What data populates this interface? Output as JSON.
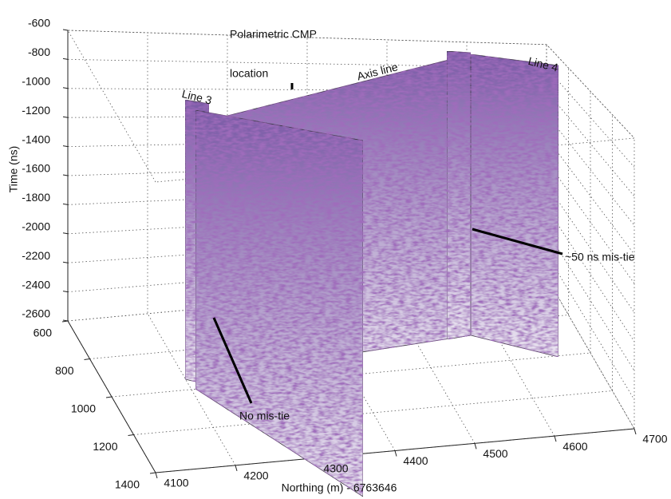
{
  "chart_data": {
    "type": "seismic-3d",
    "zlabel": "Time (ns)",
    "xlabel": "Northing (m) - 6763646",
    "xlim": [
      4100,
      4700
    ],
    "xticks": [
      4100,
      4200,
      4300,
      4400,
      4500,
      4600,
      4700
    ],
    "ylim": [
      600,
      1400
    ],
    "yticks": [
      600,
      800,
      1000,
      1200,
      1400
    ],
    "zlim": [
      -2600,
      -600
    ],
    "zticks": [
      -600,
      -800,
      -1000,
      -1200,
      -1400,
      -1600,
      -1800,
      -2000,
      -2200,
      -2400,
      -2600
    ],
    "grid": true,
    "annotations": {
      "cmp": [
        "Polarimetric CMP",
        "location"
      ],
      "axis_line": "Axis line",
      "line3": "Line 3",
      "line4": "Line 4",
      "mistie": "~50 ns mis-tie",
      "no_mistie": "No mis-tie"
    }
  }
}
